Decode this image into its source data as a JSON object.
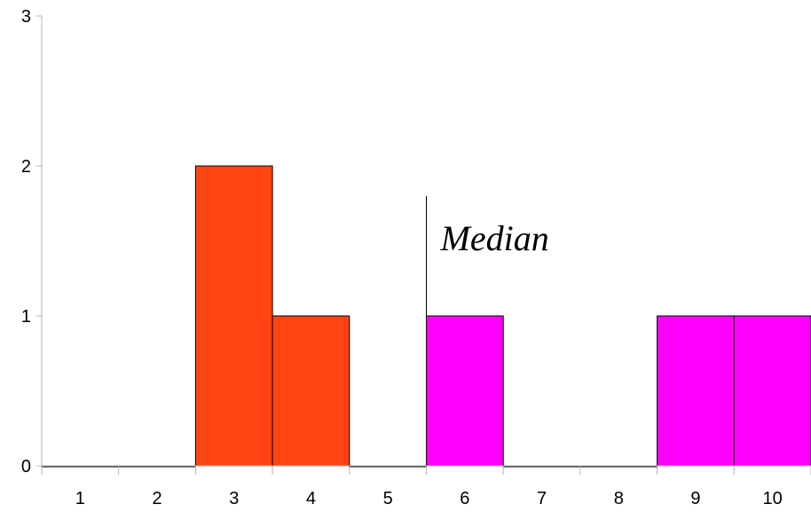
{
  "chart_data": {
    "type": "bar",
    "categories": [
      "1",
      "2",
      "3",
      "4",
      "5",
      "6",
      "7",
      "8",
      "9",
      "10"
    ],
    "values": [
      0,
      0,
      2,
      1,
      0,
      1,
      0,
      0,
      1,
      1
    ],
    "bar_colors": [
      "#ff4411",
      "#ff4411",
      "#ff4411",
      "#ff4411",
      "#ff4411",
      "#ff00ff",
      "#ff00ff",
      "#ff00ff",
      "#ff00ff",
      "#ff00ff"
    ],
    "ylim": [
      0,
      3
    ],
    "yticks": [
      "0",
      "1",
      "2",
      "3"
    ],
    "grid": false,
    "annotation": {
      "text": "Median",
      "x_boundary": 5.5,
      "line_top_value": 1.8
    }
  }
}
